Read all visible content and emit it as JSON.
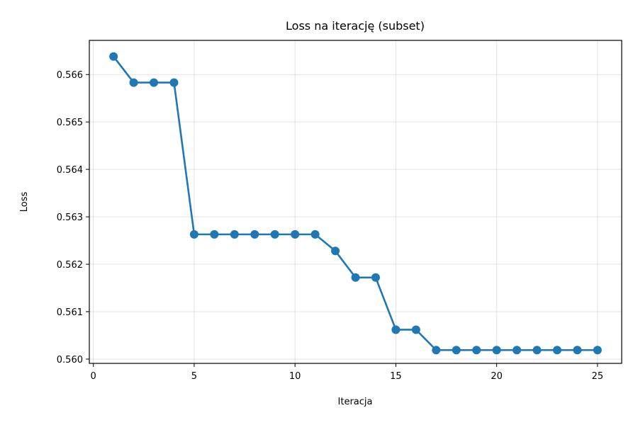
{
  "chart_data": {
    "type": "line",
    "title": "Loss na iterację (subset)",
    "xlabel": "Iteracja",
    "ylabel": "Loss",
    "xlim": [
      -0.2,
      26.2
    ],
    "ylim": [
      0.55991,
      0.56672
    ],
    "xticks": [
      0,
      5,
      10,
      15,
      20,
      25
    ],
    "yticks": [
      0.56,
      0.561,
      0.562,
      0.563,
      0.564,
      0.565,
      0.566
    ],
    "xtick_labels": [
      "0",
      "5",
      "10",
      "15",
      "20",
      "25"
    ],
    "ytick_labels": [
      "0.560",
      "0.561",
      "0.562",
      "0.563",
      "0.564",
      "0.565",
      "0.566"
    ],
    "grid": true,
    "series": [
      {
        "color": "#1f77b4",
        "marker": "circle",
        "x": [
          1,
          2,
          3,
          4,
          5,
          6,
          7,
          8,
          9,
          10,
          11,
          12,
          13,
          14,
          15,
          16,
          17,
          18,
          19,
          20,
          21,
          22,
          23,
          24,
          25
        ],
        "y": [
          0.56638,
          0.56583,
          0.56583,
          0.56583,
          0.56263,
          0.56263,
          0.56263,
          0.56263,
          0.56263,
          0.56263,
          0.56263,
          0.56228,
          0.56172,
          0.56172,
          0.56062,
          0.56062,
          0.56019,
          0.56019,
          0.56019,
          0.56019,
          0.56019,
          0.56019,
          0.56019,
          0.56019,
          0.56019
        ]
      }
    ]
  }
}
